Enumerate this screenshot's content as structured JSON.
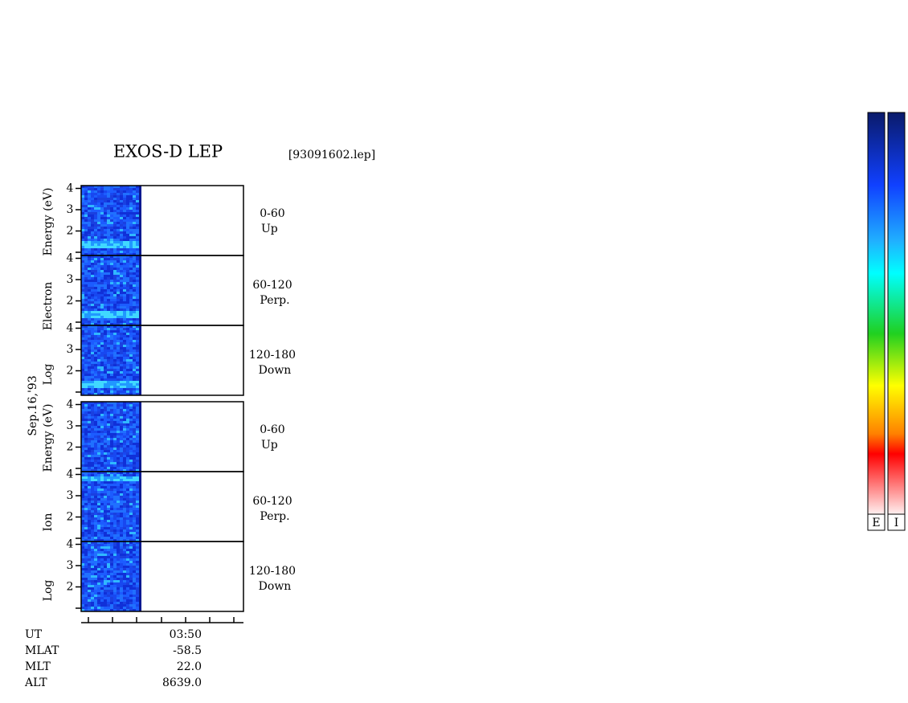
{
  "header": {
    "title": "EXOS-D LEP",
    "file": "[93091602.lep]"
  },
  "date": "Sep.16,'93",
  "groups": [
    {
      "axis_label": [
        "Log",
        "Electron",
        "Energy (eV)"
      ],
      "panels": [
        {
          "yticks": [
            "4",
            "3",
            "2"
          ],
          "angle": "0-60",
          "direction": "Up"
        },
        {
          "yticks": [
            "4",
            "3",
            "2"
          ],
          "angle": "60-120",
          "direction": "Perp."
        },
        {
          "yticks": [
            "4",
            "3",
            "2"
          ],
          "angle": "120-180",
          "direction": "Down"
        }
      ]
    },
    {
      "axis_label": [
        "Log",
        "Ion",
        "Energy (eV)"
      ],
      "panels": [
        {
          "yticks": [
            "4",
            "3",
            "2"
          ],
          "angle": "0-60",
          "direction": "Up"
        },
        {
          "yticks": [
            "4",
            "3",
            "2"
          ],
          "angle": "60-120",
          "direction": "Perp."
        },
        {
          "yticks": [
            "4",
            "3",
            "2"
          ],
          "angle": "120-180",
          "direction": "Down"
        }
      ]
    }
  ],
  "orbit": {
    "rows": [
      [
        "UT",
        "03:50"
      ],
      [
        "MLAT",
        "-58.5"
      ],
      [
        "MLT",
        "22.0"
      ],
      [
        "ALT",
        "8639.0"
      ]
    ]
  },
  "colorbars": [
    "E",
    "I"
  ]
}
